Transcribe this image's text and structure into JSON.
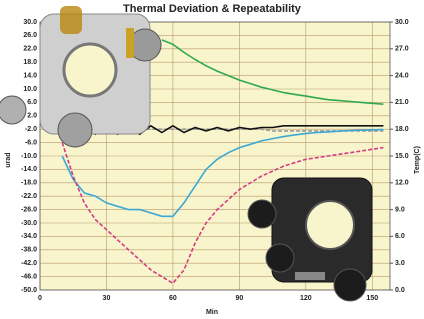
{
  "chart_data": {
    "type": "line",
    "title": "Thermal Deviation & Repeatability",
    "x_label": "Min",
    "y_label": "urad",
    "y2_label": "Temp(C)",
    "x": [
      0,
      5,
      10,
      15,
      20,
      25,
      30,
      35,
      40,
      45,
      50,
      55,
      60,
      65,
      70,
      75,
      80,
      85,
      90,
      95,
      100,
      105,
      110,
      115,
      120,
      125,
      130,
      135,
      140,
      145,
      150,
      155
    ],
    "xlim": [
      0,
      158
    ],
    "xticks": [
      0,
      30,
      60,
      90,
      120,
      150
    ],
    "ylim": [
      -50,
      30
    ],
    "yticks": [
      {
        "value": 30,
        "label": "30.0"
      },
      {
        "value": 26,
        "label": "26.0"
      },
      {
        "value": 22,
        "label": "22.0"
      },
      {
        "value": 18,
        "label": "18.0"
      },
      {
        "value": 14,
        "label": "14.0"
      },
      {
        "value": 10,
        "label": "10.0"
      },
      {
        "value": 6,
        "label": "6.0"
      },
      {
        "value": 2,
        "label": "2.0"
      },
      {
        "value": -2,
        "label": "-2.0"
      },
      {
        "value": -6,
        "label": "-6.0"
      },
      {
        "value": -10,
        "label": "-10.0"
      },
      {
        "value": -14,
        "label": "-14.0"
      },
      {
        "value": -18,
        "label": "-18.0"
      },
      {
        "value": -22,
        "label": "-22.0"
      },
      {
        "value": -26,
        "label": "-26.0"
      },
      {
        "value": -30,
        "label": "-30.0"
      },
      {
        "value": -34,
        "label": "-34.0"
      },
      {
        "value": -38,
        "label": "-38.0"
      },
      {
        "value": -42,
        "label": "-42.0"
      },
      {
        "value": -46,
        "label": "-46.0"
      },
      {
        "value": -50,
        "label": "-50.0"
      }
    ],
    "y2lim": [
      0,
      30
    ],
    "y2ticks": [
      {
        "value": 30,
        "label": "30.0"
      },
      {
        "value": 27,
        "label": "27.0"
      },
      {
        "value": 24,
        "label": "24.0"
      },
      {
        "value": 21,
        "label": "21.0"
      },
      {
        "value": 18,
        "label": "18.0"
      },
      {
        "value": 15,
        "label": "15.0"
      },
      {
        "value": 12,
        "label": "12.0"
      },
      {
        "value": 9,
        "label": "9.0"
      },
      {
        "value": 6,
        "label": "6.0"
      },
      {
        "value": 3,
        "label": "3.0"
      },
      {
        "value": 0,
        "label": "0.0"
      }
    ],
    "grid": true,
    "series": [
      {
        "color": "#2fa84f",
        "axis": "y2",
        "style": "solid",
        "values": [
          null,
          null,
          null,
          null,
          null,
          null,
          null,
          null,
          null,
          null,
          null,
          28.0,
          27.5,
          26.6,
          25.8,
          25.1,
          24.5,
          24.0,
          23.5,
          23.1,
          22.7,
          22.4,
          22.1,
          21.9,
          21.7,
          21.5,
          21.3,
          21.2,
          21.1,
          21.0,
          20.9,
          20.8
        ]
      },
      {
        "color": "#9a9a9a",
        "style": "dashed",
        "values": [
          null,
          null,
          -2,
          -2,
          -2,
          -2,
          -2,
          -2,
          -2,
          -2,
          -2,
          -2,
          -2,
          -2,
          -2,
          -2,
          -2,
          -2,
          -2,
          -2,
          -2,
          -2.5,
          -2.5,
          -2.5,
          -2.5,
          -2.5,
          -2.5,
          -2.5,
          -2.5,
          -2.5,
          -2.5,
          -2.5
        ]
      },
      {
        "color": "#111111",
        "style": "solid",
        "values": [
          null,
          null,
          -2,
          -3.5,
          -1,
          -3.5,
          -1,
          -3.5,
          -1,
          -3.5,
          -1,
          -3,
          -1,
          -3,
          -1.5,
          -2.5,
          -1.5,
          -2.5,
          -1.5,
          -2,
          -1.5,
          -1.5,
          -1,
          -1,
          -1,
          -1,
          -1,
          -1,
          -1,
          -1,
          -1,
          -1
        ]
      },
      {
        "color": "#3aa9d6",
        "style": "solid",
        "values": [
          null,
          null,
          -10,
          -17,
          -21,
          -22,
          -24,
          -25,
          -26,
          -26,
          -27,
          -28,
          -28,
          -24,
          -19,
          -14,
          -11,
          -9,
          -7.5,
          -6.5,
          -5.5,
          -4.8,
          -4.2,
          -3.7,
          -3.3,
          -3,
          -2.8,
          -2.6,
          -2.4,
          -2.3,
          -2.2,
          -2.1
        ]
      },
      {
        "color": "#d43c83",
        "style": "dashed",
        "values": [
          null,
          null,
          -6,
          -16,
          -24,
          -29,
          -32,
          -35,
          -38,
          -41,
          -44,
          -46,
          -48,
          -44,
          -36,
          -30,
          -26,
          -23,
          -20,
          -18,
          -16,
          -14.5,
          -13,
          -12,
          -11,
          -10.5,
          -10,
          -9.5,
          -9,
          -8.5,
          -8,
          -7.5
        ]
      }
    ]
  }
}
